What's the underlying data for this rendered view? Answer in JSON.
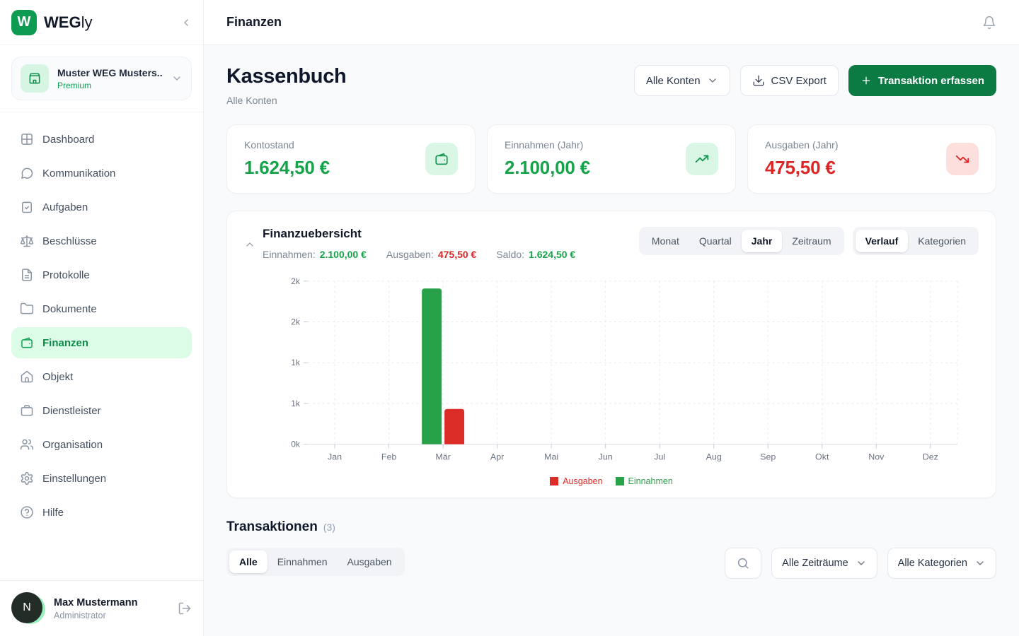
{
  "brand": {
    "badge_letter": "W",
    "name_bold": "WEG",
    "name_light": "ly"
  },
  "topbar": {
    "title": "Finanzen"
  },
  "sidebar": {
    "account": {
      "name": "Muster WEG Musters...",
      "plan": "Premium"
    },
    "items": [
      {
        "label": "Dashboard",
        "icon": "grid"
      },
      {
        "label": "Kommunikation",
        "icon": "chat"
      },
      {
        "label": "Aufgaben",
        "icon": "clipboard-check"
      },
      {
        "label": "Beschlüsse",
        "icon": "scale"
      },
      {
        "label": "Protokolle",
        "icon": "file-text"
      },
      {
        "label": "Dokumente",
        "icon": "folder"
      },
      {
        "label": "Finanzen",
        "icon": "wallet",
        "active": true
      },
      {
        "label": "Objekt",
        "icon": "home"
      },
      {
        "label": "Dienstleister",
        "icon": "briefcase"
      },
      {
        "label": "Organisation",
        "icon": "users"
      },
      {
        "label": "Einstellungen",
        "icon": "gear"
      },
      {
        "label": "Hilfe",
        "icon": "help-circle"
      }
    ],
    "user": {
      "initial": "N",
      "name": "Max Mustermann",
      "role": "Administrator"
    }
  },
  "page": {
    "title": "Kassenbuch",
    "subtitle": "Alle Konten",
    "account_select": "Alle Konten",
    "csv_export": "CSV Export",
    "add_transaction": "Transaktion erfassen"
  },
  "stats": [
    {
      "label": "Kontostand",
      "value": "1.624,50 €",
      "tone": "green",
      "icon": "wallet"
    },
    {
      "label": "Einnahmen (Jahr)",
      "value": "2.100,00 €",
      "tone": "green",
      "icon": "trending-up"
    },
    {
      "label": "Ausgaben (Jahr)",
      "value": "475,50 €",
      "tone": "red",
      "icon": "trending-down"
    }
  ],
  "overview": {
    "title": "Finanzuebersicht",
    "summary": [
      {
        "label": "Einnahmen:",
        "value": "2.100,00 €",
        "tone": "green"
      },
      {
        "label": "Ausgaben:",
        "value": "475,50 €",
        "tone": "red"
      },
      {
        "label": "Saldo:",
        "value": "1.624,50 €",
        "tone": "green"
      }
    ],
    "period_tabs": [
      "Monat",
      "Quartal",
      "Jahr",
      "Zeitraum"
    ],
    "active_period": "Jahr",
    "view_tabs": [
      "Verlauf",
      "Kategorien"
    ],
    "active_view": "Verlauf"
  },
  "chart_data": {
    "type": "bar",
    "title": "Finanzuebersicht",
    "categories": [
      "Jan",
      "Feb",
      "Mär",
      "Apr",
      "Mai",
      "Jun",
      "Jul",
      "Aug",
      "Sep",
      "Okt",
      "Nov",
      "Dez"
    ],
    "series": [
      {
        "name": "Ausgaben",
        "color": "#dc2c28",
        "values": [
          0,
          0,
          475.5,
          0,
          0,
          0,
          0,
          0,
          0,
          0,
          0,
          0
        ]
      },
      {
        "name": "Einnahmen",
        "color": "#27a248",
        "values": [
          0,
          0,
          2100,
          0,
          0,
          0,
          0,
          0,
          0,
          0,
          0,
          0
        ]
      }
    ],
    "ylim": [
      0,
      2200
    ],
    "yticks": [
      {
        "value": 0,
        "label": "0k"
      },
      {
        "value": 550,
        "label": "1k"
      },
      {
        "value": 1100,
        "label": "1k"
      },
      {
        "value": 1650,
        "label": "2k"
      },
      {
        "value": 2200,
        "label": "2k"
      }
    ],
    "grid": "dashed",
    "legend_position": "bottom"
  },
  "transactions": {
    "title": "Transaktionen",
    "count": "(3)",
    "tabs": [
      "Alle",
      "Einnahmen",
      "Ausgaben"
    ],
    "active_tab": "Alle",
    "filters": {
      "zeitraum": "Alle Zeiträume",
      "kategorien": "Alle Kategorien"
    }
  },
  "colors": {
    "brand_green": "#0d9a51",
    "button_green": "#0c7a43",
    "positive": "#16a34a",
    "negative": "#dc2626",
    "active_nav_bg": "#dcfce7"
  }
}
